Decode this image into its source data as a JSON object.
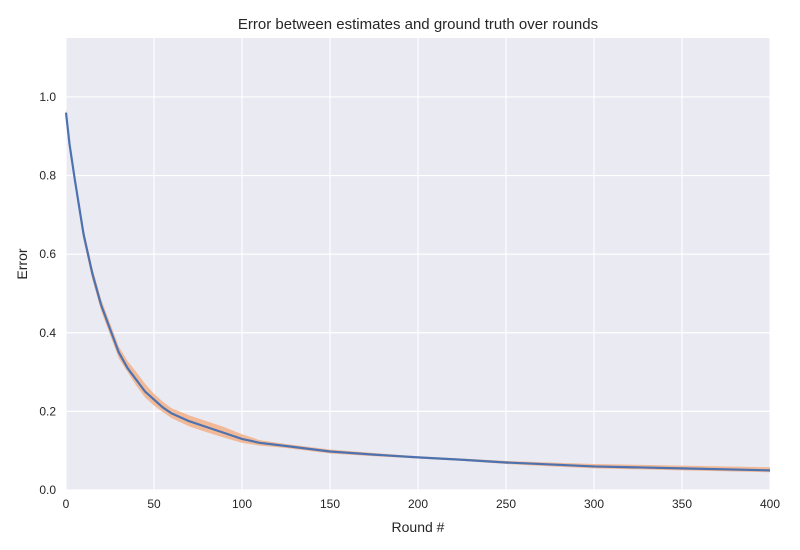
{
  "chart_data": {
    "type": "line",
    "title": "Error between estimates and ground truth over rounds",
    "xlabel": "Round #",
    "ylabel": "Error",
    "xlim": [
      0,
      400
    ],
    "ylim": [
      0.0,
      1.15
    ],
    "x_ticks": [
      0,
      50,
      100,
      150,
      200,
      250,
      300,
      350,
      400
    ],
    "y_ticks": [
      0.0,
      0.2,
      0.4,
      0.6,
      0.8,
      1.0
    ],
    "y_tick_labels": [
      "0.0",
      "0.2",
      "0.4",
      "0.6",
      "0.8",
      "1.0"
    ],
    "grid": true,
    "colors": {
      "mean_line": "#4c72b0",
      "band": "#f3b088",
      "background": "#eaeaf2"
    },
    "series": [
      {
        "kind": "mean-line",
        "x": [
          0,
          2,
          5,
          10,
          15,
          20,
          25,
          30,
          35,
          40,
          45,
          50,
          55,
          60,
          70,
          80,
          90,
          100,
          110,
          125,
          150,
          175,
          200,
          225,
          250,
          275,
          300,
          350,
          400
        ],
        "y": [
          0.96,
          0.88,
          0.79,
          0.65,
          0.55,
          0.47,
          0.41,
          0.35,
          0.31,
          0.28,
          0.25,
          0.23,
          0.21,
          0.195,
          0.175,
          0.16,
          0.145,
          0.13,
          0.12,
          0.112,
          0.098,
          0.09,
          0.083,
          0.077,
          0.07,
          0.065,
          0.06,
          0.055,
          0.05
        ]
      },
      {
        "kind": "band-upper",
        "x": [
          0,
          2,
          5,
          10,
          15,
          20,
          25,
          30,
          35,
          40,
          45,
          50,
          55,
          60,
          70,
          80,
          90,
          100,
          110,
          125,
          150,
          175,
          200,
          225,
          250,
          275,
          300,
          350,
          400
        ],
        "y": [
          0.97,
          0.895,
          0.8,
          0.665,
          0.565,
          0.485,
          0.425,
          0.365,
          0.328,
          0.3,
          0.27,
          0.245,
          0.225,
          0.208,
          0.19,
          0.175,
          0.16,
          0.142,
          0.127,
          0.117,
          0.103,
          0.094,
          0.086,
          0.08,
          0.074,
          0.07,
          0.066,
          0.062,
          0.058
        ]
      },
      {
        "kind": "band-lower",
        "x": [
          0,
          2,
          5,
          10,
          15,
          20,
          25,
          30,
          35,
          40,
          45,
          50,
          55,
          60,
          70,
          80,
          90,
          100,
          110,
          125,
          150,
          175,
          200,
          225,
          250,
          275,
          300,
          350,
          400
        ],
        "y": [
          0.95,
          0.865,
          0.78,
          0.635,
          0.535,
          0.455,
          0.395,
          0.335,
          0.3,
          0.265,
          0.235,
          0.215,
          0.198,
          0.183,
          0.162,
          0.147,
          0.133,
          0.12,
          0.113,
          0.107,
          0.093,
          0.086,
          0.08,
          0.074,
          0.066,
          0.06,
          0.055,
          0.05,
          0.045
        ]
      }
    ]
  }
}
